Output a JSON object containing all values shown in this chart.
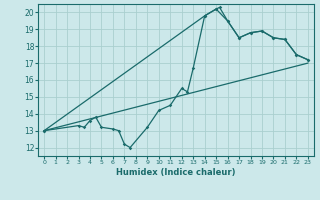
{
  "bg_color": "#cce8ea",
  "grid_color": "#aacfcf",
  "line_color": "#1a6b6b",
  "xlabel": "Humidex (Indice chaleur)",
  "xlim": [
    -0.5,
    23.5
  ],
  "ylim": [
    11.5,
    20.5
  ],
  "yticks": [
    12,
    13,
    14,
    15,
    16,
    17,
    18,
    19,
    20
  ],
  "xticks": [
    0,
    1,
    2,
    3,
    4,
    5,
    6,
    7,
    8,
    9,
    10,
    11,
    12,
    13,
    14,
    15,
    16,
    17,
    18,
    19,
    20,
    21,
    22,
    23
  ],
  "series1_x": [
    0,
    3,
    3.5,
    4,
    4.5,
    5,
    6,
    6.5,
    7,
    7.5,
    9,
    10,
    11,
    12,
    12.5,
    13,
    14,
    15,
    15.3,
    16,
    17,
    18,
    19,
    20,
    21,
    22,
    23
  ],
  "series1_y": [
    13,
    13.3,
    13.2,
    13.6,
    13.8,
    13.2,
    13.1,
    13.0,
    12.2,
    12.0,
    13.2,
    14.2,
    14.5,
    15.5,
    15.3,
    16.7,
    19.8,
    20.2,
    20.3,
    19.5,
    18.5,
    18.8,
    18.9,
    18.5,
    18.4,
    17.5,
    17.2
  ],
  "series2_x": [
    0,
    14,
    15,
    16,
    17,
    18,
    19,
    20,
    21,
    22,
    23
  ],
  "series2_y": [
    13.0,
    19.8,
    20.2,
    19.5,
    18.5,
    18.8,
    18.9,
    18.5,
    18.4,
    17.5,
    17.2
  ],
  "series3_x": [
    0,
    23
  ],
  "series3_y": [
    13.0,
    17.0
  ]
}
